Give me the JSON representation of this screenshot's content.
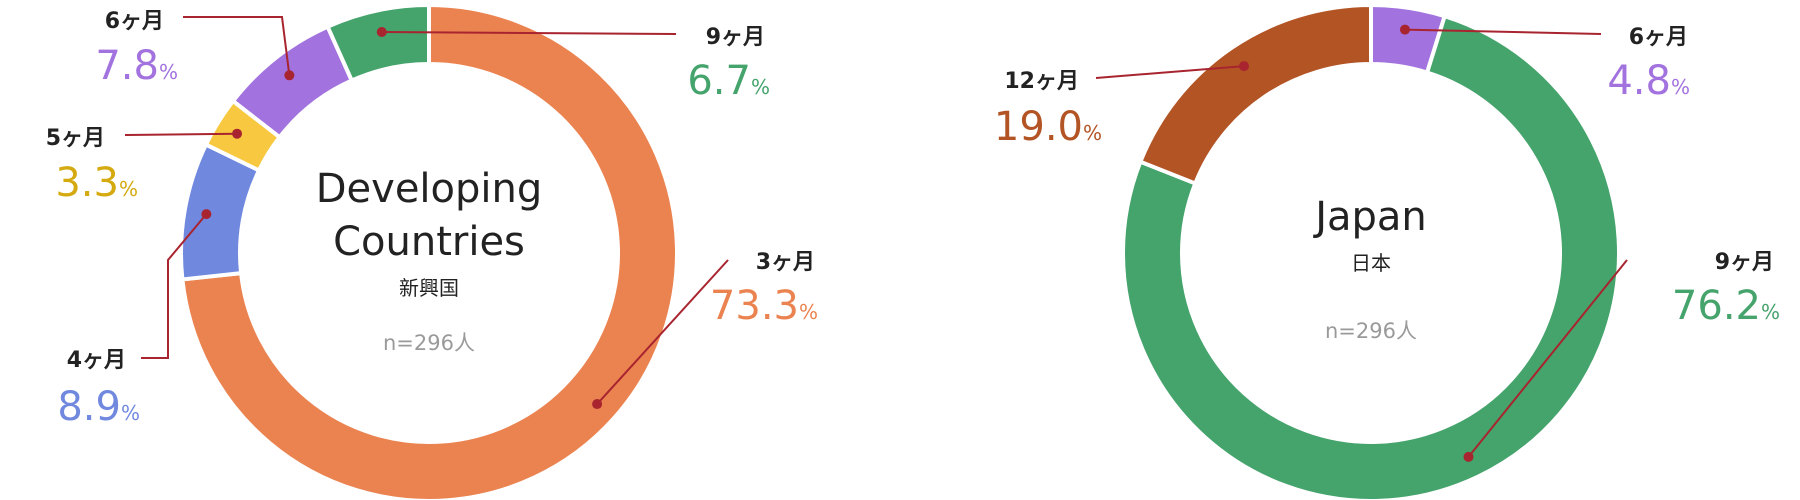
{
  "chart_data": [
    {
      "type": "pie",
      "title": "Developing Countries",
      "subtitle": "新興国",
      "sample_size": "n=296人",
      "unit": "%",
      "slices": [
        {
          "label": "3ヶ月",
          "value": 73.3,
          "color": "#EB8350"
        },
        {
          "label": "4ヶ月",
          "value": 8.9,
          "color": "#7089DF"
        },
        {
          "label": "5ヶ月",
          "value": 3.3,
          "color": "#F8C940"
        },
        {
          "label": "6ヶ月",
          "value": 7.8,
          "color": "#A272DF"
        },
        {
          "label": "9ヶ月",
          "value": 6.7,
          "color": "#45A36C"
        }
      ],
      "value_text_colors": {
        "3ヶ月": "#EB8350",
        "4ヶ月": "#7089DF",
        "5ヶ月": "#D4AA10",
        "6ヶ月": "#A272DF",
        "9ヶ月": "#45A36C"
      }
    },
    {
      "type": "pie",
      "title": "Japan",
      "subtitle": "日本",
      "sample_size": "n=296人",
      "unit": "%",
      "slices": [
        {
          "label": "6ヶ月",
          "value": 4.8,
          "color": "#A272DF"
        },
        {
          "label": "9ヶ月",
          "value": 76.2,
          "color": "#45A36C"
        },
        {
          "label": "12ヶ月",
          "value": 19.0,
          "color": "#B35425"
        }
      ],
      "value_text_colors": {
        "6ヶ月": "#A272DF",
        "9ヶ月": "#45A36C",
        "12ヶ月": "#B35425"
      }
    }
  ],
  "colors": {
    "leader_line": "#A8242F",
    "label_text": "#222222",
    "sample_size_text": "#9A9A9A"
  }
}
